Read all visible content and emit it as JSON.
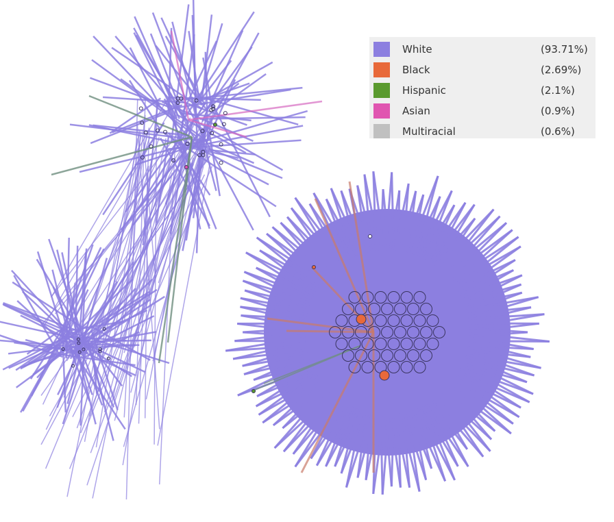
{
  "legend": {
    "items": [
      {
        "label": "White",
        "percent": "(93.71%)",
        "color": "#8c7fe0"
      },
      {
        "label": "Black",
        "percent": "(2.69%)",
        "color": "#e8693a"
      },
      {
        "label": "Hispanic",
        "percent": "(2.1%)",
        "color": "#5a9a2e"
      },
      {
        "label": "Asian",
        "percent": "(0.9%)",
        "color": "#e055b0"
      },
      {
        "label": "Multiracial",
        "percent": "(0.6%)",
        "color": "#c0c0c0"
      }
    ]
  },
  "colors": {
    "edge_primary": "#8c7fe0",
    "edge_black": "#c97a6a",
    "edge_hispanic": "#6f8f80",
    "edge_asian": "#d66ac0",
    "node_outline": "#3a3560"
  }
}
